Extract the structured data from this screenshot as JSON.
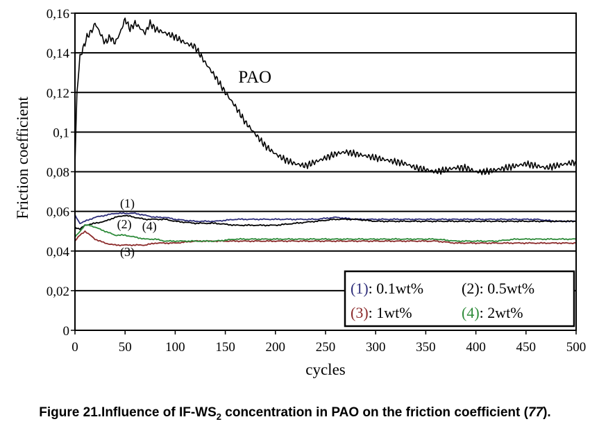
{
  "chart_data": {
    "type": "line",
    "xlabel": "cycles",
    "ylabel": "Friction coefficient",
    "xlim": [
      0,
      500
    ],
    "ylim": [
      0,
      0.16
    ],
    "x_ticks": [
      0,
      50,
      100,
      150,
      200,
      250,
      300,
      350,
      400,
      450,
      500
    ],
    "x_tick_labels": [
      "0",
      "50",
      "100",
      "150",
      "200",
      "250",
      "300",
      "350",
      "400",
      "450",
      "500"
    ],
    "y_ticks": [
      0,
      0.02,
      0.04,
      0.06,
      0.08,
      0.1,
      0.12,
      0.14,
      0.16
    ],
    "y_tick_labels": [
      "0",
      "0,02",
      "0,04",
      "0,06",
      "0,08",
      "0,1",
      "0,12",
      "0,14",
      "0,16"
    ],
    "grid": "horizontal",
    "legend_position": "bottom-right",
    "series": [
      {
        "name": "PAO",
        "color": "#000000",
        "x": [
          0,
          2,
          5,
          8,
          12,
          18,
          20,
          25,
          30,
          35,
          40,
          45,
          50,
          55,
          60,
          70,
          75,
          80,
          90,
          100,
          110,
          120,
          130,
          140,
          150,
          160,
          170,
          180,
          190,
          200,
          210,
          220,
          230,
          240,
          250,
          260,
          270,
          280,
          290,
          300,
          310,
          320,
          330,
          340,
          350,
          360,
          370,
          380,
          390,
          400,
          410,
          420,
          430,
          440,
          450,
          460,
          470,
          480,
          490,
          500
        ],
        "y": [
          0.083,
          0.12,
          0.138,
          0.142,
          0.148,
          0.152,
          0.155,
          0.15,
          0.145,
          0.148,
          0.145,
          0.15,
          0.157,
          0.152,
          0.155,
          0.15,
          0.155,
          0.152,
          0.15,
          0.148,
          0.145,
          0.143,
          0.135,
          0.128,
          0.12,
          0.113,
          0.105,
          0.099,
          0.093,
          0.089,
          0.086,
          0.084,
          0.083,
          0.085,
          0.087,
          0.089,
          0.09,
          0.089,
          0.088,
          0.087,
          0.086,
          0.085,
          0.084,
          0.082,
          0.081,
          0.08,
          0.081,
          0.082,
          0.082,
          0.08,
          0.08,
          0.081,
          0.082,
          0.083,
          0.084,
          0.083,
          0.082,
          0.083,
          0.084,
          0.085
        ]
      },
      {
        "name": "(1): 0.1wt%",
        "color": "#2e2e7a",
        "x": [
          0,
          5,
          10,
          20,
          30,
          40,
          50,
          60,
          70,
          80,
          90,
          100,
          120,
          140,
          160,
          180,
          200,
          220,
          240,
          260,
          280,
          300,
          320,
          340,
          360,
          380,
          400,
          420,
          440,
          460,
          480,
          500
        ],
        "y": [
          0.058,
          0.054,
          0.055,
          0.057,
          0.058,
          0.059,
          0.059,
          0.059,
          0.058,
          0.057,
          0.057,
          0.056,
          0.055,
          0.055,
          0.056,
          0.056,
          0.056,
          0.056,
          0.056,
          0.057,
          0.056,
          0.056,
          0.056,
          0.056,
          0.056,
          0.056,
          0.056,
          0.056,
          0.056,
          0.056,
          0.055,
          0.055
        ]
      },
      {
        "name": "(2): 0.5wt%",
        "color": "#000000",
        "x": [
          0,
          5,
          10,
          20,
          30,
          40,
          50,
          60,
          70,
          80,
          90,
          100,
          120,
          140,
          160,
          180,
          200,
          220,
          240,
          260,
          280,
          300,
          320,
          340,
          360,
          380,
          400,
          420,
          440,
          460,
          480,
          500
        ],
        "y": [
          0.052,
          0.051,
          0.053,
          0.054,
          0.055,
          0.057,
          0.058,
          0.057,
          0.056,
          0.056,
          0.056,
          0.055,
          0.054,
          0.054,
          0.053,
          0.053,
          0.053,
          0.054,
          0.055,
          0.056,
          0.056,
          0.055,
          0.055,
          0.055,
          0.055,
          0.055,
          0.055,
          0.055,
          0.055,
          0.055,
          0.055,
          0.055
        ]
      },
      {
        "name": "(3): 1wt%",
        "color": "#8b2a2a",
        "x": [
          0,
          5,
          10,
          15,
          20,
          30,
          40,
          50,
          60,
          70,
          80,
          90,
          100,
          120,
          140,
          160,
          180,
          200,
          220,
          240,
          260,
          280,
          300,
          320,
          340,
          360,
          380,
          400,
          420,
          440,
          460,
          480,
          500
        ],
        "y": [
          0.045,
          0.048,
          0.05,
          0.048,
          0.046,
          0.044,
          0.043,
          0.043,
          0.043,
          0.043,
          0.044,
          0.044,
          0.044,
          0.045,
          0.045,
          0.045,
          0.045,
          0.045,
          0.045,
          0.045,
          0.045,
          0.045,
          0.045,
          0.045,
          0.045,
          0.045,
          0.044,
          0.044,
          0.044,
          0.044,
          0.044,
          0.044,
          0.044
        ]
      },
      {
        "name": "(4): 2wt%",
        "color": "#2e8b3a",
        "x": [
          0,
          5,
          10,
          15,
          20,
          30,
          40,
          50,
          60,
          70,
          80,
          90,
          100,
          120,
          140,
          160,
          180,
          200,
          220,
          240,
          260,
          280,
          300,
          320,
          340,
          360,
          380,
          400,
          420,
          440,
          460,
          480,
          500
        ],
        "y": [
          0.047,
          0.05,
          0.053,
          0.053,
          0.052,
          0.05,
          0.048,
          0.048,
          0.047,
          0.046,
          0.046,
          0.045,
          0.045,
          0.045,
          0.045,
          0.046,
          0.046,
          0.046,
          0.046,
          0.046,
          0.046,
          0.046,
          0.046,
          0.046,
          0.046,
          0.046,
          0.045,
          0.045,
          0.045,
          0.046,
          0.046,
          0.046,
          0.046
        ]
      }
    ],
    "annotations": [
      {
        "text": "PAO",
        "x": 163,
        "y": 0.125
      },
      {
        "text": "(1)",
        "x": 45,
        "y": 0.062
      },
      {
        "text": "(2)",
        "x": 42,
        "y": 0.0515
      },
      {
        "text": "(4)",
        "x": 67,
        "y": 0.0505
      },
      {
        "text": "(3)",
        "x": 45,
        "y": 0.0375
      }
    ],
    "legend": {
      "rows": [
        [
          {
            "num": "(1)",
            "label": ": 0.1wt%",
            "color": "#2e2e7a"
          },
          {
            "num": "(2)",
            "label": ": 0.5wt%",
            "color": "#000000"
          }
        ],
        [
          {
            "num": "(3)",
            "label": ": 1wt%",
            "color": "#8b2a2a"
          },
          {
            "num": "(4)",
            "label": ": 2wt%",
            "color": "#2e8b3a"
          }
        ]
      ]
    }
  },
  "caption": {
    "prefix": "Figure 21.Influence of IF-WS",
    "sub": "2",
    "middle": " concentration in PAO on the friction coefficient (",
    "ref": "77",
    "suffix": ")."
  }
}
